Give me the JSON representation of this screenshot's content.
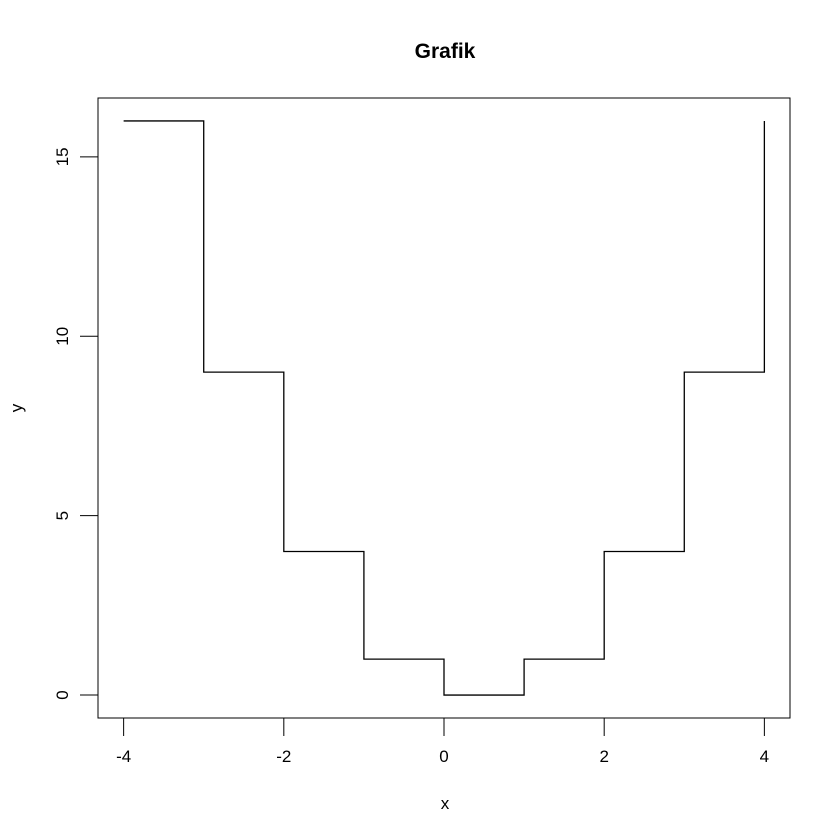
{
  "chart_data": {
    "type": "line",
    "step": "post",
    "title": "Grafik",
    "xlabel": "x",
    "ylabel": "y",
    "x": [
      -4,
      -3,
      -2,
      -1,
      0,
      1,
      2,
      3,
      4
    ],
    "y": [
      16,
      9,
      4,
      1,
      0,
      1,
      4,
      9,
      16
    ],
    "xticks": [
      -4,
      -2,
      0,
      2,
      4
    ],
    "xtick_labels": [
      "-4",
      "-2",
      "0",
      "2",
      "4"
    ],
    "yticks": [
      0,
      5,
      10,
      15
    ],
    "ytick_labels": [
      "0",
      "5",
      "10",
      "15"
    ],
    "xlim": [
      -4.32,
      4.32
    ],
    "ylim": [
      -0.64,
      16.64
    ],
    "grid": false,
    "line_color": "#000000"
  }
}
